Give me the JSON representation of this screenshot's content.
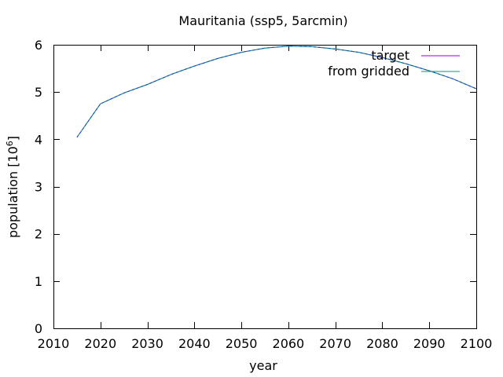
{
  "chart_data": {
    "type": "line",
    "title": "Mauritania (ssp5, 5arcmin)",
    "xlabel": "year",
    "ylabel_main": "population [10",
    "ylabel_exp": "6",
    "ylabel_close": "]",
    "xlim": [
      2010,
      2100
    ],
    "ylim": [
      0,
      6
    ],
    "xticks": [
      2010,
      2020,
      2030,
      2040,
      2050,
      2060,
      2070,
      2080,
      2090,
      2100
    ],
    "yticks": [
      0,
      1,
      2,
      3,
      4,
      5,
      6
    ],
    "grid": false,
    "legend_position": "top-right",
    "x": [
      2015,
      2020,
      2025,
      2030,
      2035,
      2040,
      2045,
      2050,
      2055,
      2060,
      2065,
      2070,
      2075,
      2080,
      2085,
      2090,
      2095,
      2100
    ],
    "series": [
      {
        "name": "target",
        "color": "#9400d3",
        "values": [
          4.04,
          4.75,
          4.98,
          5.16,
          5.37,
          5.55,
          5.71,
          5.84,
          5.93,
          5.97,
          5.96,
          5.91,
          5.84,
          5.73,
          5.6,
          5.45,
          5.28,
          5.07
        ]
      },
      {
        "name": "from gridded",
        "color": "#009e73",
        "values": [
          4.04,
          4.75,
          4.98,
          5.16,
          5.37,
          5.55,
          5.71,
          5.84,
          5.93,
          5.97,
          5.96,
          5.91,
          5.84,
          5.73,
          5.6,
          5.45,
          5.28,
          5.07
        ]
      }
    ],
    "overlay_line_color": "#1f3fd6"
  }
}
